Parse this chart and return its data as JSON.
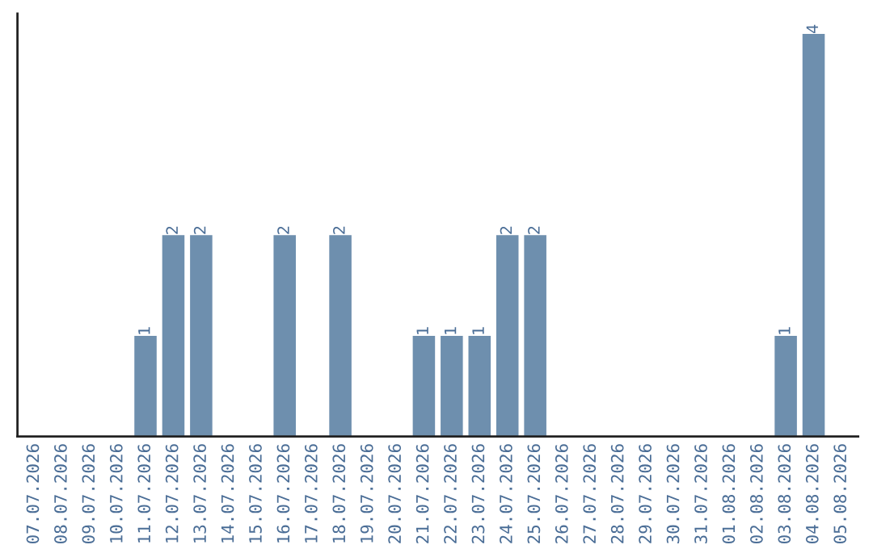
{
  "chart_data": {
    "type": "bar",
    "categories": [
      "07.07.2026",
      "08.07.2026",
      "09.07.2026",
      "10.07.2026",
      "11.07.2026",
      "12.07.2026",
      "13.07.2026",
      "14.07.2026",
      "15.07.2026",
      "16.07.2026",
      "17.07.2026",
      "18.07.2026",
      "19.07.2026",
      "20.07.2026",
      "21.07.2026",
      "22.07.2026",
      "23.07.2026",
      "24.07.2026",
      "25.07.2026",
      "26.07.2026",
      "27.07.2026",
      "28.07.2026",
      "29.07.2026",
      "30.07.2026",
      "31.07.2026",
      "01.08.2026",
      "02.08.2026",
      "03.08.2026",
      "04.08.2026",
      "05.08.2026"
    ],
    "values": [
      0,
      0,
      0,
      0,
      1,
      2,
      2,
      0,
      0,
      2,
      0,
      2,
      0,
      0,
      1,
      1,
      1,
      2,
      2,
      0,
      0,
      0,
      0,
      0,
      0,
      0,
      0,
      1,
      4,
      0
    ],
    "value_labels": [
      null,
      null,
      null,
      null,
      "1",
      "2",
      "2",
      null,
      null,
      "2",
      null,
      "2",
      null,
      null,
      "1",
      "1",
      "1",
      "2",
      "2",
      null,
      null,
      null,
      null,
      null,
      null,
      null,
      null,
      "1",
      "4",
      null
    ],
    "color": "#6e8fae",
    "tick_labels": "x",
    "grid": false,
    "legend": false
  }
}
